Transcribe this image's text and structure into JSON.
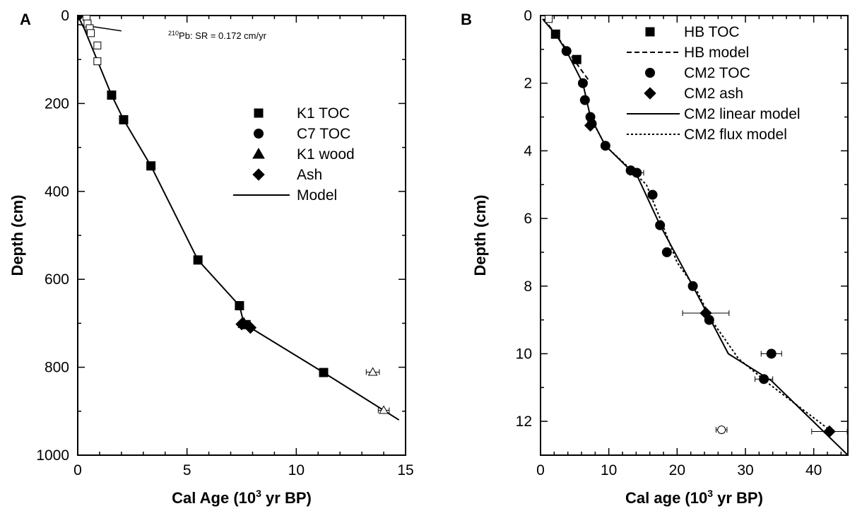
{
  "chart_data": [
    {
      "panel_label": "A",
      "type": "scatter",
      "xlabel": "Cal Age (10",
      "xlabel_sup": "3",
      "xlabel_end": " yr BP)",
      "ylabel": "Depth (cm)",
      "xlim": [
        0,
        15
      ],
      "ylim": [
        1000,
        0
      ],
      "y_reversed": true,
      "grid": false,
      "legend_position": "center-right",
      "x_ticks": [
        0,
        5,
        10,
        15
      ],
      "y_ticks": [
        0,
        200,
        400,
        600,
        800,
        1000
      ],
      "annotation": {
        "sup": "210",
        "text": "Pb: SR = 0.172 cm/yr",
        "line": [
          [
            0,
            20
          ],
          [
            2.0,
            35
          ]
        ],
        "color": "#000000"
      },
      "series": [
        {
          "name": "K1 TOC",
          "marker": "square",
          "filled": true,
          "points": [
            {
              "x": 1.55,
              "y": 181
            },
            {
              "x": 2.1,
              "y": 237
            },
            {
              "x": 3.35,
              "y": 342
            },
            {
              "x": 5.5,
              "y": 556
            },
            {
              "x": 7.4,
              "y": 660
            },
            {
              "x": 7.7,
              "y": 703
            },
            {
              "x": 11.25,
              "y": 812
            }
          ]
        },
        {
          "name": "C7 TOC",
          "marker": "circle",
          "filled": true,
          "points": [
            {
              "x": 0.0,
              "y": 0
            }
          ]
        },
        {
          "name": "K1 wood",
          "marker": "triangle",
          "filled": true,
          "points": [
            {
              "x": 7.6,
              "y": 700
            }
          ]
        },
        {
          "name": "Ash",
          "marker": "diamond",
          "filled": true,
          "points": [
            {
              "x": 7.5,
              "y": 702
            },
            {
              "x": 7.9,
              "y": 710
            }
          ]
        },
        {
          "name": "",
          "marker": "square",
          "filled": false,
          "points": [
            {
              "x": 0.4,
              "y": 3,
              "xerr": 0.15
            },
            {
              "x": 0.45,
              "y": 18,
              "xerr": 0.15
            },
            {
              "x": 0.55,
              "y": 29,
              "xerr": 0.12
            },
            {
              "x": 0.6,
              "y": 40,
              "xerr": 0.12
            },
            {
              "x": 0.9,
              "y": 68,
              "xerr": 0.15
            },
            {
              "x": 0.9,
              "y": 104,
              "xerr": 0.12
            }
          ]
        },
        {
          "name": "",
          "marker": "triangle",
          "filled": false,
          "points": [
            {
              "x": 13.5,
              "y": 811,
              "xerr": 0.3
            },
            {
              "x": 14.0,
              "y": 898,
              "xerr": 0.25
            }
          ]
        }
      ],
      "model": {
        "name": "Model",
        "style": "solid",
        "points": [
          [
            0,
            0
          ],
          [
            0.3,
            30
          ],
          [
            1.55,
            181
          ],
          [
            2.1,
            237
          ],
          [
            3.35,
            342
          ],
          [
            5.5,
            556
          ],
          [
            7.4,
            660
          ],
          [
            7.6,
            700
          ],
          [
            7.9,
            710
          ],
          [
            11.25,
            812
          ],
          [
            14.7,
            920
          ]
        ]
      },
      "legend": [
        {
          "label": "K1 TOC",
          "marker": "square"
        },
        {
          "label": "C7 TOC",
          "marker": "circle"
        },
        {
          "label": "K1 wood",
          "marker": "triangle"
        },
        {
          "label": "Ash",
          "marker": "diamond"
        },
        {
          "label": "Model",
          "marker": "line-solid"
        }
      ]
    },
    {
      "panel_label": "B",
      "type": "scatter",
      "xlabel": "Cal age (10",
      "xlabel_sup": "3",
      "xlabel_end": " yr BP)",
      "ylabel": "Depth (cm)",
      "xlim": [
        0,
        45
      ],
      "ylim": [
        13,
        0
      ],
      "y_reversed": true,
      "grid": false,
      "legend_position": "top-right",
      "x_ticks": [
        0,
        10,
        20,
        30,
        40
      ],
      "y_ticks": [
        0,
        2,
        4,
        6,
        8,
        10,
        12
      ],
      "series": [
        {
          "name": "HB TOC",
          "marker": "square",
          "filled": true,
          "points": [
            {
              "x": 2.2,
              "y": 0.55
            },
            {
              "x": 5.3,
              "y": 1.3
            }
          ]
        },
        {
          "name": "",
          "marker": "square",
          "filled": false,
          "points": [
            {
              "x": 1.2,
              "y": 0.1
            }
          ]
        },
        {
          "name": "CM2 TOC",
          "marker": "circle",
          "filled": true,
          "points": [
            {
              "x": 3.8,
              "y": 1.05
            },
            {
              "x": 6.2,
              "y": 2.0
            },
            {
              "x": 6.5,
              "y": 2.5
            },
            {
              "x": 7.3,
              "y": 3.0
            },
            {
              "x": 7.5,
              "y": 3.2
            },
            {
              "x": 9.5,
              "y": 3.85
            },
            {
              "x": 13.2,
              "y": 4.58
            },
            {
              "x": 14.1,
              "y": 4.65,
              "xerr": 1.0
            },
            {
              "x": 16.4,
              "y": 5.3
            },
            {
              "x": 17.5,
              "y": 6.2
            },
            {
              "x": 18.5,
              "y": 7.0
            },
            {
              "x": 22.3,
              "y": 8.0
            },
            {
              "x": 24.7,
              "y": 9.0
            },
            {
              "x": 33.8,
              "y": 10.0,
              "xerr": 1.5
            },
            {
              "x": 32.7,
              "y": 10.75,
              "xerr": 1.3
            }
          ]
        },
        {
          "name": "",
          "marker": "circle",
          "filled": false,
          "points": [
            {
              "x": 26.5,
              "y": 12.25,
              "xerr": 0.8
            }
          ]
        },
        {
          "name": "CM2 ash",
          "marker": "diamond",
          "filled": true,
          "points": [
            {
              "x": 7.3,
              "y": 3.25
            },
            {
              "x": 24.2,
              "y": 8.8,
              "xerr": 3.4
            },
            {
              "x": 42.3,
              "y": 12.3,
              "xerr": 2.6
            }
          ]
        }
      ],
      "models": [
        {
          "name": "HB model",
          "style": "dashed",
          "points": [
            [
              0.5,
              0.1
            ],
            [
              2.2,
              0.55
            ],
            [
              4.5,
              1.2
            ],
            [
              7.0,
              1.9
            ]
          ]
        },
        {
          "name": "CM2 linear model",
          "style": "solid",
          "points": [
            [
              0.3,
              0.1
            ],
            [
              2.2,
              0.55
            ],
            [
              3.8,
              1.05
            ],
            [
              6.2,
              2.0
            ],
            [
              7.3,
              3.0
            ],
            [
              9.5,
              3.85
            ],
            [
              13.2,
              4.58
            ],
            [
              14.3,
              4.8
            ],
            [
              17.5,
              6.2
            ],
            [
              22.3,
              8.0
            ],
            [
              27.5,
              10.0
            ],
            [
              33.8,
              10.8
            ],
            [
              45,
              13.0
            ]
          ]
        },
        {
          "name": "CM2 flux model",
          "style": "dotted",
          "points": [
            [
              7.3,
              3.0
            ],
            [
              9.5,
              3.85
            ],
            [
              13.2,
              4.55
            ],
            [
              15.5,
              5.0
            ],
            [
              17.5,
              6.0
            ],
            [
              20.0,
              7.3
            ],
            [
              22.8,
              8.1
            ],
            [
              25.0,
              9.0
            ],
            [
              29.0,
              10.15
            ],
            [
              33.5,
              10.9
            ],
            [
              42.3,
              12.25
            ]
          ]
        }
      ],
      "legend": [
        {
          "label": "HB TOC",
          "marker": "square"
        },
        {
          "label": "HB model",
          "marker": "line-dashed"
        },
        {
          "label": "CM2 TOC",
          "marker": "circle"
        },
        {
          "label": "CM2 ash",
          "marker": "diamond"
        },
        {
          "label": "CM2 linear model",
          "marker": "line-solid"
        },
        {
          "label": "CM2 flux model",
          "marker": "line-dotted"
        }
      ]
    }
  ]
}
